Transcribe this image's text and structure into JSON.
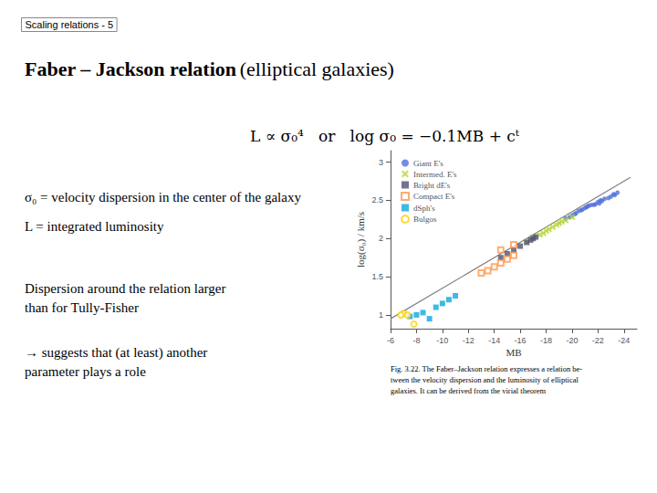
{
  "chart_data": {
    "type": "scatter",
    "title": "Faber – Jackson relation",
    "subtitle": "(elliptical galaxies)",
    "annotations": [
      "Scaling relations - 5",
      "L ∝ σ₀⁴   or   log σ₀ = −0.1MB + cᵗ",
      "σ₀ = velocity dispersion in the center of the galaxy",
      "L = integrated luminosity",
      "Dispersion around the relation larger\nthan for Tully-Fisher",
      "→ suggests that (at least) another\nparameter plays a role",
      "Fig. 3.22. The Faber–Jackson relation expresses a relation be-\ntween the velocity dispersion and the luminosity of elliptical\ngalaxies. It can be derived from the virial theorem"
    ],
    "x_label": "MB",
    "y_label": "log(σ₀) / km/s",
    "xlim": [
      -6,
      -25
    ],
    "ylim": [
      0.82,
      3.15
    ],
    "xticks": [
      -6,
      -8,
      -10,
      -12,
      -14,
      -16,
      -18,
      -20,
      -22,
      -24
    ],
    "yticks": [
      1,
      1.5,
      2,
      2.5,
      3
    ],
    "grid": false,
    "legend": "upper left",
    "series": [
      {
        "name": "Giant E's",
        "marker": "dot",
        "x": [
          -19.8,
          -20.2,
          -20.5,
          -20.8,
          -21.0,
          -21.2,
          -21.5,
          -21.8,
          -22.0,
          -22.2,
          -22.5,
          -22.8,
          -23.0,
          -23.2,
          -23.5,
          -19.5,
          -20.0,
          -21.3,
          -22.1,
          -20.7,
          -21.7,
          -22.3,
          -23.3,
          -20.3,
          -21.1
        ],
        "values": [
          2.28,
          2.32,
          2.36,
          2.38,
          2.4,
          2.42,
          2.44,
          2.45,
          2.48,
          2.5,
          2.52,
          2.53,
          2.55,
          2.58,
          2.6,
          2.26,
          2.3,
          2.43,
          2.46,
          2.37,
          2.44,
          2.49,
          2.57,
          2.33,
          2.41
        ]
      },
      {
        "name": "Intermed. E's",
        "marker": "x",
        "x": [
          -17.5,
          -17.8,
          -18.0,
          -18.2,
          -18.5,
          -19.0,
          -19.2,
          -19.5,
          -16.5,
          -20.0,
          -17.0,
          -18.8
        ],
        "values": [
          2.05,
          2.07,
          2.1,
          2.12,
          2.15,
          2.2,
          2.22,
          2.24,
          1.95,
          2.28,
          2.02,
          2.18
        ]
      },
      {
        "name": "Bright dE's",
        "marker": "square",
        "x": [
          -15.0,
          -15.5,
          -16.0,
          -16.5,
          -17.0,
          -17.2,
          -14.5,
          -16.8
        ],
        "values": [
          1.8,
          1.85,
          1.9,
          1.95,
          2.0,
          2.02,
          1.75,
          1.98
        ]
      },
      {
        "name": "Compact E's",
        "marker": "open square",
        "x": [
          -13.5,
          -14.0,
          -14.5,
          -15.0,
          -13.0,
          -15.5,
          -14.5,
          -15.5
        ],
        "values": [
          1.58,
          1.63,
          1.68,
          1.73,
          1.55,
          1.78,
          1.85,
          1.92
        ]
      },
      {
        "name": "dSph's",
        "marker": "square",
        "x": [
          -8.0,
          -8.5,
          -9.0,
          -9.5,
          -10.0,
          -10.5,
          -11.0,
          -7.5
        ],
        "values": [
          1.0,
          1.03,
          0.95,
          1.1,
          1.15,
          1.2,
          1.25,
          0.98
        ]
      },
      {
        "name": "Bulgos",
        "marker": "open circle",
        "x": [
          -7.0,
          -7.3,
          -7.8,
          -6.8
        ],
        "values": [
          1.02,
          1.0,
          0.88,
          1.0
        ]
      },
      {
        "type": "line",
        "color": "#808080",
        "x": [
          -6,
          -24.5
        ],
        "values": [
          0.95,
          2.8
        ]
      }
    ]
  }
}
